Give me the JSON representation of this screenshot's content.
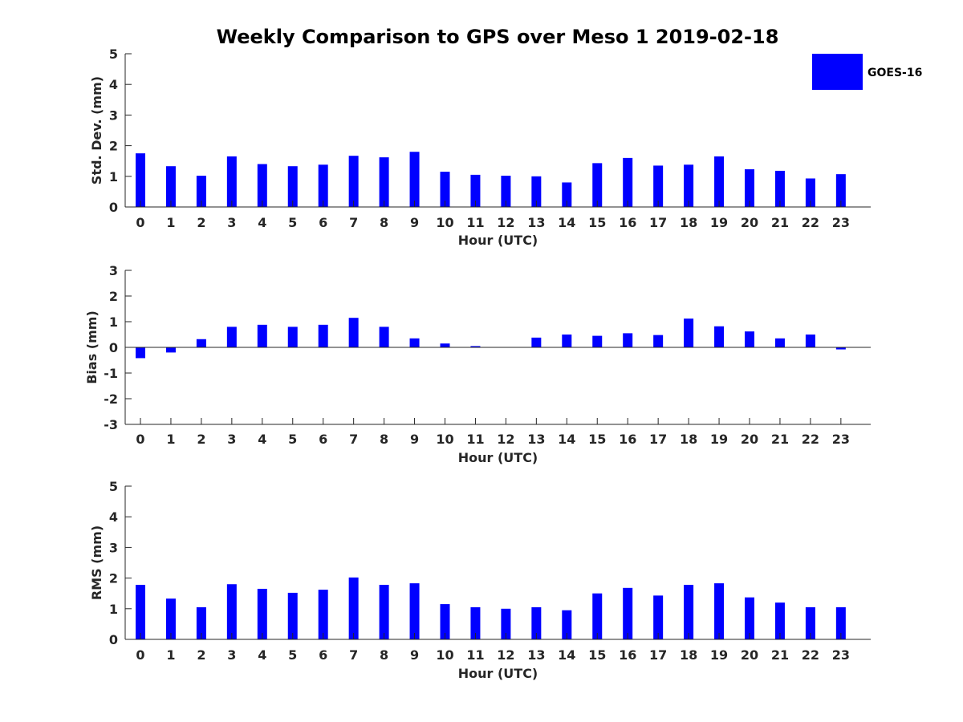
{
  "figure_title": "Weekly Comparison to GPS over Meso 1 2019-02-18",
  "legend": {
    "label": "GOES-16",
    "color": "#0000ff"
  },
  "chart_data": [
    {
      "type": "bar",
      "title": "Weekly Comparison to GPS over Meso 1 2019-02-18",
      "xlabel": "Hour (UTC)",
      "ylabel": "Std. Dev. (mm)",
      "ylim": [
        0,
        5
      ],
      "yticks": [
        "0",
        "1",
        "2",
        "3",
        "4",
        "5"
      ],
      "categories": [
        "0",
        "1",
        "2",
        "3",
        "4",
        "5",
        "6",
        "7",
        "8",
        "9",
        "10",
        "11",
        "12",
        "13",
        "14",
        "15",
        "16",
        "17",
        "18",
        "19",
        "20",
        "21",
        "22",
        "23"
      ],
      "series": [
        {
          "name": "GOES-16",
          "values": [
            1.75,
            1.33,
            1.02,
            1.65,
            1.4,
            1.33,
            1.38,
            1.67,
            1.62,
            1.8,
            1.15,
            1.05,
            1.02,
            1.0,
            0.8,
            1.43,
            1.6,
            1.35,
            1.38,
            1.65,
            1.23,
            1.18,
            0.93,
            1.07
          ]
        }
      ]
    },
    {
      "type": "bar",
      "title": "",
      "xlabel": "Hour (UTC)",
      "ylabel": "Bias (mm)",
      "ylim": [
        -3,
        3
      ],
      "yticks": [
        "-3",
        "-2",
        "-1",
        "0",
        "1",
        "2",
        "3"
      ],
      "categories": [
        "0",
        "1",
        "2",
        "3",
        "4",
        "5",
        "6",
        "7",
        "8",
        "9",
        "10",
        "11",
        "12",
        "13",
        "14",
        "15",
        "16",
        "17",
        "18",
        "19",
        "20",
        "21",
        "22",
        "23"
      ],
      "series": [
        {
          "name": "GOES-16",
          "values": [
            -0.42,
            -0.2,
            0.32,
            0.8,
            0.88,
            0.8,
            0.88,
            1.15,
            0.8,
            0.35,
            0.15,
            0.05,
            0.01,
            0.38,
            0.5,
            0.45,
            0.55,
            0.48,
            1.12,
            0.82,
            0.62,
            0.35,
            0.5,
            -0.08
          ]
        }
      ]
    },
    {
      "type": "bar",
      "title": "",
      "xlabel": "Hour (UTC)",
      "ylabel": "RMS (mm)",
      "ylim": [
        0,
        5
      ],
      "yticks": [
        "0",
        "1",
        "2",
        "3",
        "4",
        "5"
      ],
      "categories": [
        "0",
        "1",
        "2",
        "3",
        "4",
        "5",
        "6",
        "7",
        "8",
        "9",
        "10",
        "11",
        "12",
        "13",
        "14",
        "15",
        "16",
        "17",
        "18",
        "19",
        "20",
        "21",
        "22",
        "23"
      ],
      "series": [
        {
          "name": "GOES-16",
          "values": [
            1.78,
            1.33,
            1.05,
            1.8,
            1.65,
            1.52,
            1.62,
            2.02,
            1.78,
            1.83,
            1.15,
            1.05,
            1.0,
            1.05,
            0.95,
            1.5,
            1.68,
            1.43,
            1.78,
            1.83,
            1.37,
            1.2,
            1.05,
            1.05
          ]
        }
      ]
    }
  ]
}
